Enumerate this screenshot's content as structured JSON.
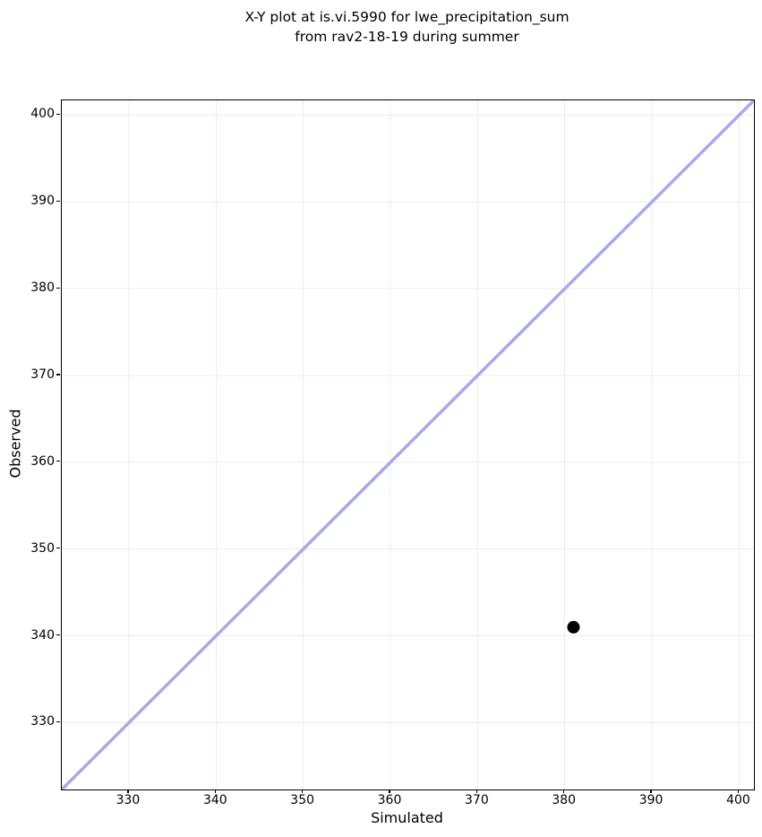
{
  "chart_data": {
    "type": "scatter",
    "title": "X-Y plot at is.vi.5990 for lwe_precipitation_sum\nfrom rav2-18-19 during summer",
    "xlabel": "Simulated",
    "ylabel": "Observed",
    "xlim": [
      322.3,
      401.7
    ],
    "ylim": [
      322.3,
      401.7
    ],
    "xticks": [
      330,
      340,
      350,
      360,
      370,
      380,
      390,
      400
    ],
    "yticks": [
      330,
      340,
      350,
      360,
      370,
      380,
      390,
      400
    ],
    "grid": true,
    "grid_color": "#ececec",
    "axis_color": "#000000",
    "background": "#ffffff",
    "legend": "none",
    "series": [
      {
        "name": "observed-vs-simulated",
        "type": "scatter",
        "color": "#000000",
        "marker": "circle",
        "marker_radius": 7,
        "points": [
          {
            "x": 381,
            "y": 341
          }
        ]
      }
    ],
    "identity_line": {
      "x": [
        322.3,
        401.7
      ],
      "y": [
        322.3,
        401.7
      ],
      "color": "#a8a8ee",
      "width": 3.5
    }
  }
}
